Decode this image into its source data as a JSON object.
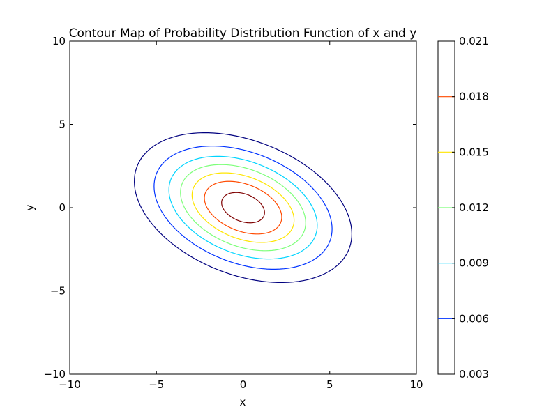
{
  "chart_data": {
    "type": "contour",
    "title": "Contour Map of Probability Distribution Function of x and y",
    "xlabel": "x",
    "ylabel": "y",
    "xlim": [
      -10,
      10
    ],
    "ylim": [
      -10,
      10
    ],
    "xticks": [
      -10,
      -5,
      0,
      5,
      10
    ],
    "yticks": [
      -10,
      -5,
      0,
      5,
      10
    ],
    "xtick_labels": [
      "−10",
      "−5",
      "0",
      "5",
      "10"
    ],
    "ytick_labels": [
      "−10",
      "−5",
      "0",
      "5",
      "10"
    ],
    "grid": false,
    "center": [
      0,
      0
    ],
    "orientation_deg": -23,
    "levels": [
      {
        "value": 0.003,
        "color": "#00007f",
        "semi_major": 6.6,
        "semi_minor": 4.0
      },
      {
        "value": 0.006,
        "color": "#0033ff",
        "semi_major": 5.4,
        "semi_minor": 3.3
      },
      {
        "value": 0.009,
        "color": "#00d4ff",
        "semi_major": 4.5,
        "semi_minor": 2.75
      },
      {
        "value": 0.012,
        "color": "#7dff7a",
        "semi_major": 3.8,
        "semi_minor": 2.3
      },
      {
        "value": 0.015,
        "color": "#ffe500",
        "semi_major": 3.1,
        "semi_minor": 1.85
      },
      {
        "value": 0.018,
        "color": "#ff4a00",
        "semi_major": 2.35,
        "semi_minor": 1.4
      },
      {
        "value": 0.021,
        "color": "#7f0000",
        "semi_major": 1.3,
        "semi_minor": 0.82
      }
    ],
    "colorbar": {
      "range": [
        0.003,
        0.021
      ],
      "ticks": [
        0.003,
        0.006,
        0.009,
        0.012,
        0.015,
        0.018,
        0.021
      ],
      "tick_labels": [
        "0.003",
        "0.006",
        "0.009",
        "0.012",
        "0.015",
        "0.018",
        "0.021"
      ]
    }
  }
}
